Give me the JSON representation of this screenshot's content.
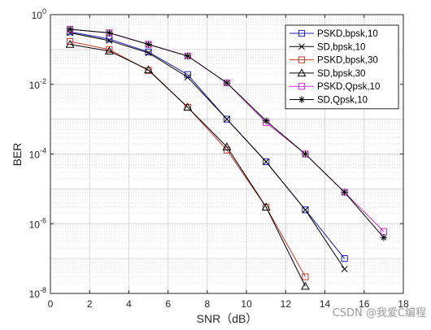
{
  "chart_data": {
    "type": "line",
    "xlabel": "SNR（dB）",
    "ylabel": "BER",
    "yscale": "log",
    "xlim": [
      0,
      18
    ],
    "ylim": [
      1e-08,
      1
    ],
    "x_ticks": [
      0,
      2,
      4,
      6,
      8,
      10,
      12,
      14,
      16,
      18
    ],
    "y_ticks": [
      {
        "value": 1,
        "base": "10",
        "exp": "0"
      },
      {
        "value": 0.01,
        "base": "10",
        "exp": "-2"
      },
      {
        "value": 0.0001,
        "base": "10",
        "exp": "-4"
      },
      {
        "value": 1e-06,
        "base": "10",
        "exp": "-6"
      },
      {
        "value": 1e-08,
        "base": "10",
        "exp": "-8"
      }
    ],
    "grid": true,
    "minor_grid": true,
    "legend_position": "top-right",
    "series": [
      {
        "name": "PSKD,bpsk,10",
        "color": "#1f1fb4",
        "marker": "square",
        "x": [
          1,
          3,
          5,
          7,
          9,
          11,
          13,
          15
        ],
        "y": [
          0.32,
          0.2,
          0.085,
          0.019,
          0.001,
          6e-05,
          2.5e-06,
          1e-07
        ]
      },
      {
        "name": "SD,bpsk,10",
        "color": "#000000",
        "marker": "x",
        "x": [
          1,
          3,
          5,
          7,
          9,
          11,
          13,
          15
        ],
        "y": [
          0.3,
          0.18,
          0.08,
          0.016,
          0.001,
          6e-05,
          2.5e-06,
          5e-08
        ]
      },
      {
        "name": "PSKD,bpsk,30",
        "color": "#c0392b",
        "marker": "square",
        "x": [
          1,
          3,
          5,
          7,
          9,
          11,
          13
        ],
        "y": [
          0.17,
          0.1,
          0.025,
          0.0022,
          0.00013,
          3e-06,
          3e-08
        ]
      },
      {
        "name": "SD,bpsk,30",
        "color": "#000000",
        "marker": "triangle",
        "x": [
          1,
          3,
          5,
          7,
          9,
          11,
          13
        ],
        "y": [
          0.14,
          0.09,
          0.026,
          0.0022,
          0.00016,
          3e-06,
          1.6e-08
        ]
      },
      {
        "name": "PSKD,Qpsk,10",
        "color": "#cc33cc",
        "marker": "square",
        "x": [
          1,
          3,
          5,
          7,
          9,
          11,
          13,
          15,
          17
        ],
        "y": [
          0.38,
          0.3,
          0.14,
          0.065,
          0.011,
          0.0008,
          0.0001,
          8e-06,
          6e-07
        ]
      },
      {
        "name": "SD,Qpsk,10",
        "color": "#000000",
        "marker": "star",
        "x": [
          1,
          3,
          5,
          7,
          9,
          11,
          13,
          15,
          17
        ],
        "y": [
          0.38,
          0.3,
          0.14,
          0.065,
          0.011,
          0.0009,
          0.0001,
          8e-06,
          4e-07
        ]
      }
    ]
  },
  "watermark": "CSDN @我爱C编程"
}
